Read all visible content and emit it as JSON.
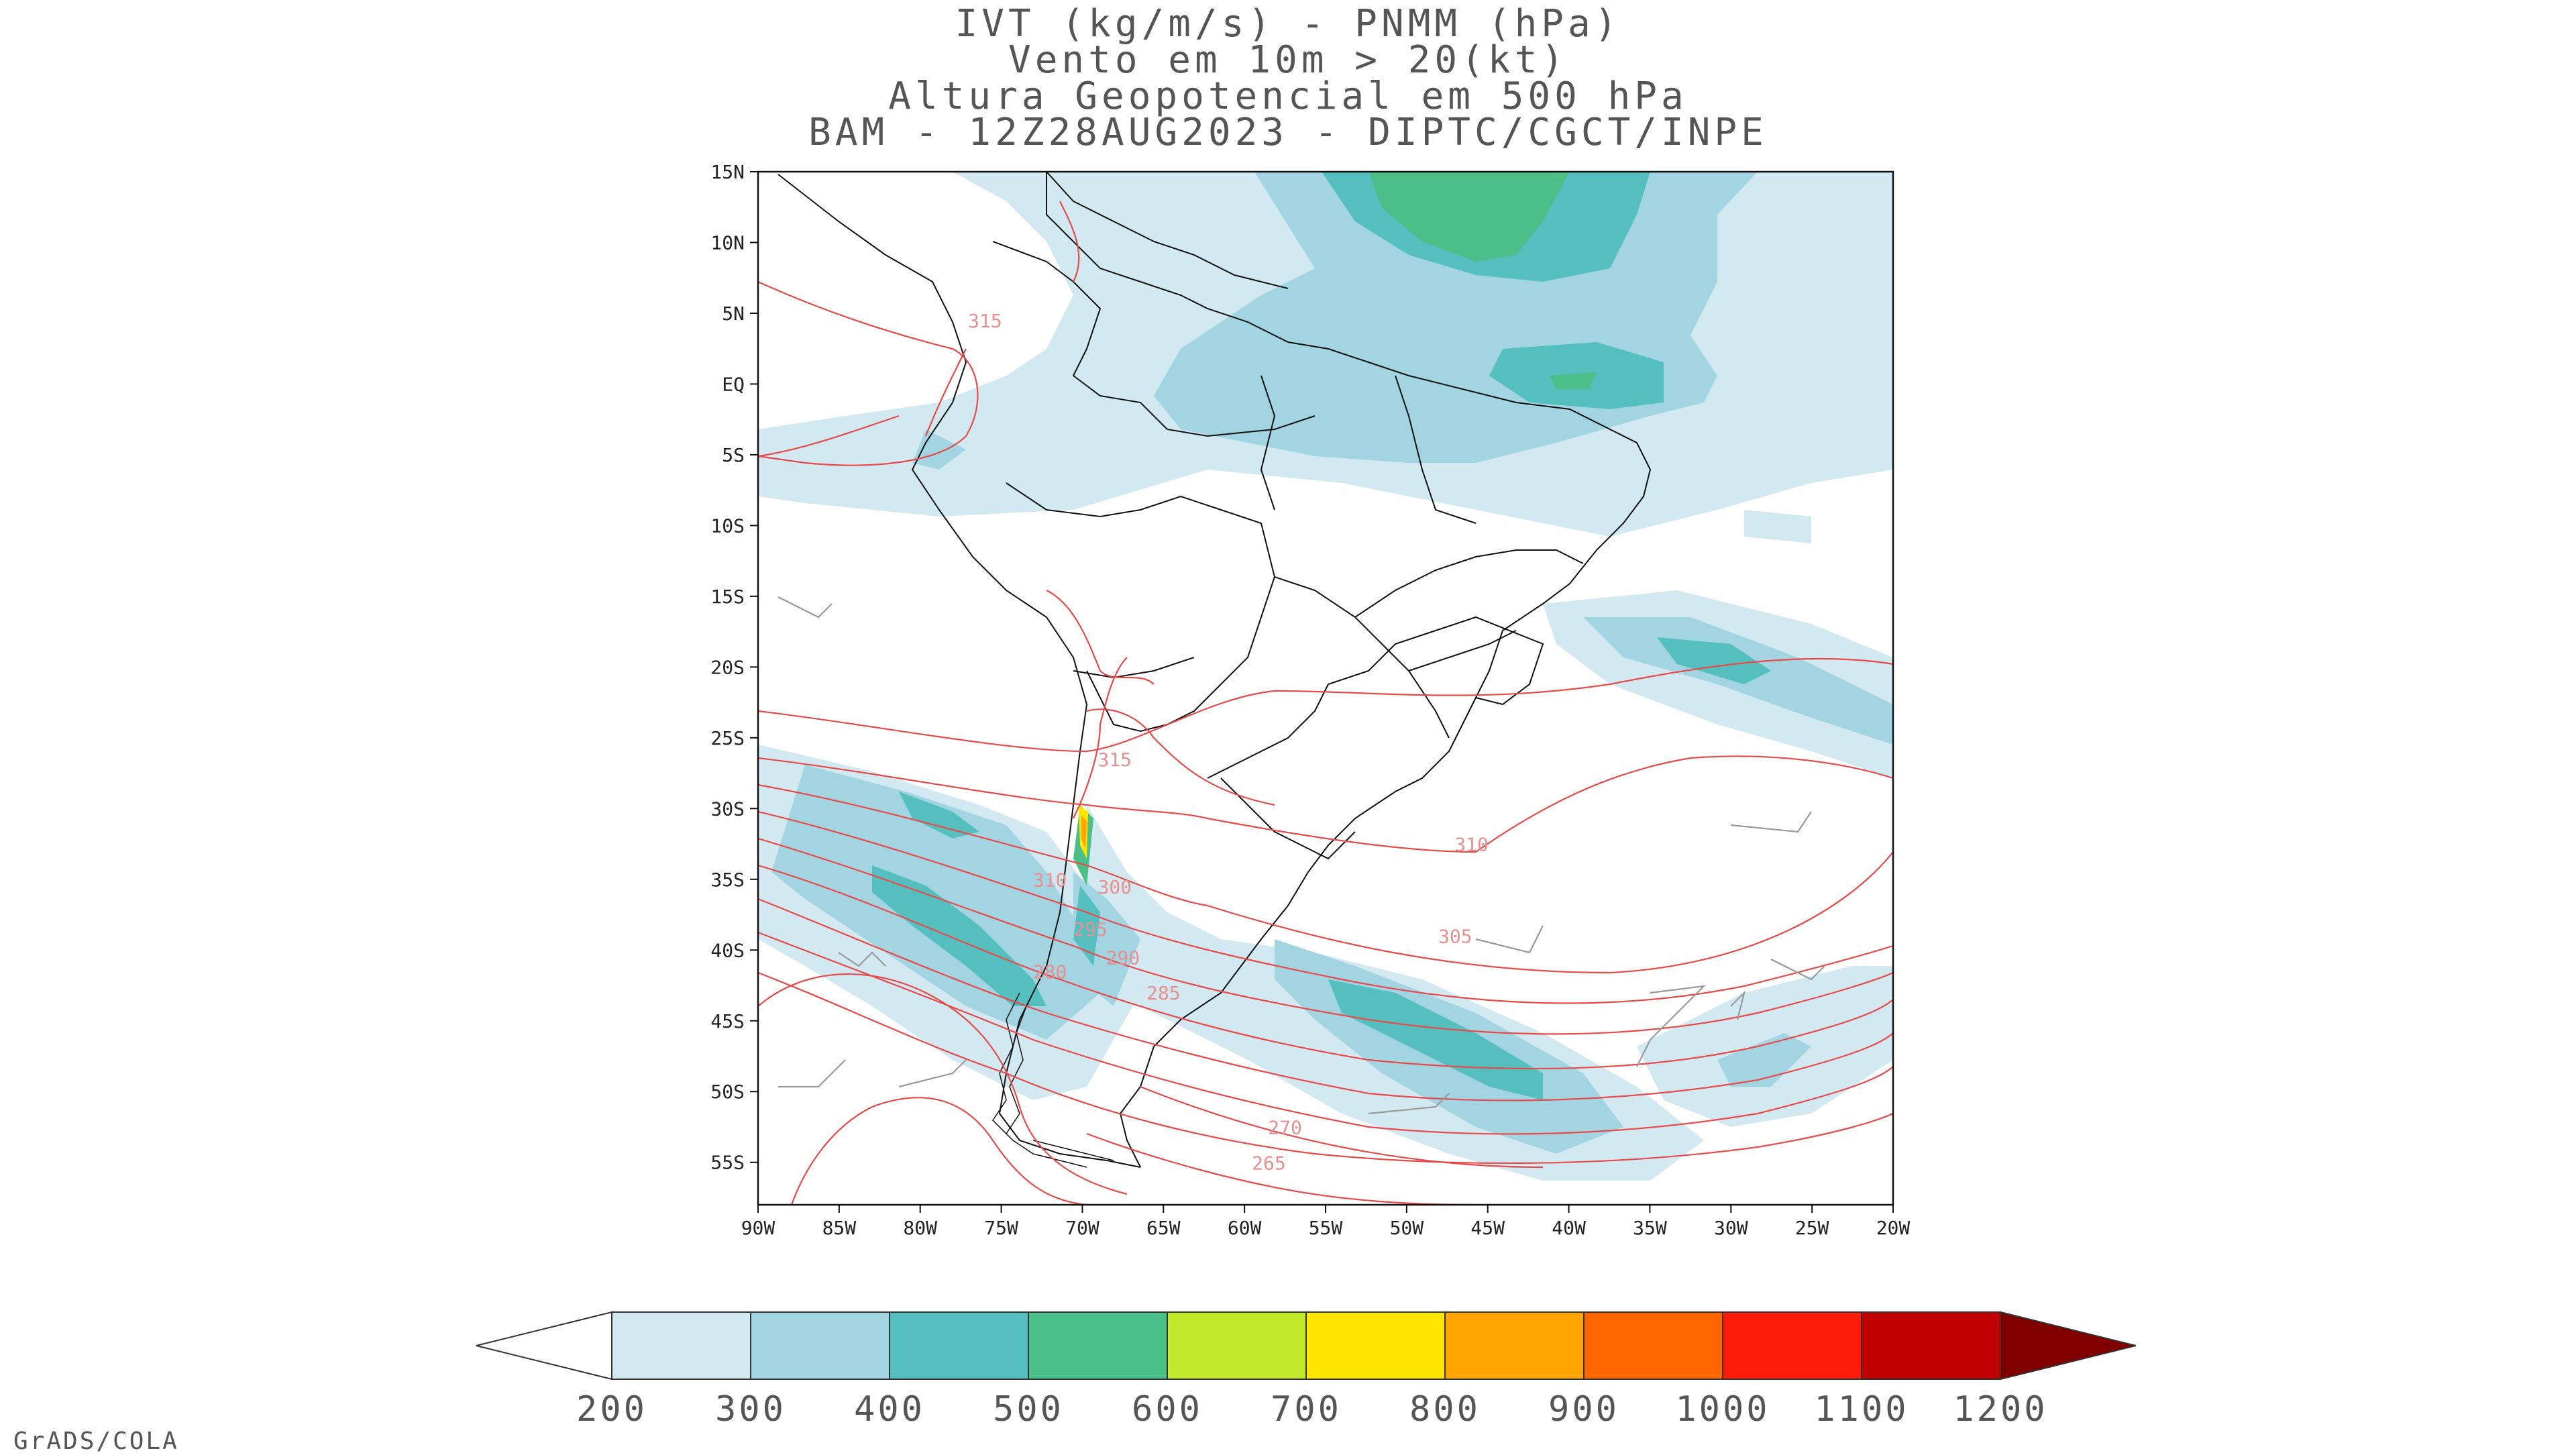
{
  "title": {
    "line1": "IVT (kg/m/s) - PNMM (hPa)",
    "line2": "Vento em 10m > 20(kt)",
    "line3": "Altura Geopotencial em 500 hPa",
    "line4": "BAM - 12Z28AUG2023 - DIPTC/CGCT/INPE"
  },
  "map": {
    "lat_labels": [
      "15N",
      "10N",
      "5N",
      "EQ",
      "5S",
      "10S",
      "15S",
      "20S",
      "25S",
      "30S",
      "35S",
      "40S",
      "45S",
      "50S",
      "55S"
    ],
    "lon_labels": [
      "90W",
      "85W",
      "80W",
      "75W",
      "70W",
      "65W",
      "60W",
      "55W",
      "50W",
      "45W",
      "40W",
      "35W",
      "30W",
      "25W",
      "20W"
    ],
    "extent": {
      "lon_min": -90,
      "lon_max": -20,
      "lat_min": -58,
      "lat_max": 15
    },
    "contour_labels": [
      {
        "text": "315",
        "lon": -76,
        "lat": 4
      },
      {
        "text": "315",
        "lon": -68,
        "lat": -27
      },
      {
        "text": "310",
        "lon": -46,
        "lat": -33
      },
      {
        "text": "305",
        "lon": -47,
        "lat": -39.5
      },
      {
        "text": "300",
        "lon": -68,
        "lat": -36
      },
      {
        "text": "295",
        "lon": -69.5,
        "lat": -39
      },
      {
        "text": "290",
        "lon": -67.5,
        "lat": -41
      },
      {
        "text": "285",
        "lon": -65,
        "lat": -43.5
      },
      {
        "text": "280",
        "lon": -72,
        "lat": -42
      },
      {
        "text": "270",
        "lon": -57.5,
        "lat": -53
      },
      {
        "text": "265",
        "lon": -58.5,
        "lat": -55.5
      },
      {
        "text": "310",
        "lon": -72,
        "lat": -35.5
      }
    ]
  },
  "colorbar": {
    "labels": [
      "200",
      "300",
      "400",
      "500",
      "600",
      "700",
      "800",
      "900",
      "1000",
      "1100",
      "1200"
    ],
    "colors": [
      "#ffffff",
      "#d2e9f2",
      "#a2d4e2",
      "#55bfc0",
      "#4bbf88",
      "#c2ea2a",
      "#ffe600",
      "#ffa500",
      "#ff6600",
      "#ff1a0a",
      "#c00000",
      "#800000"
    ]
  },
  "credit": "GrADS/COLA"
}
